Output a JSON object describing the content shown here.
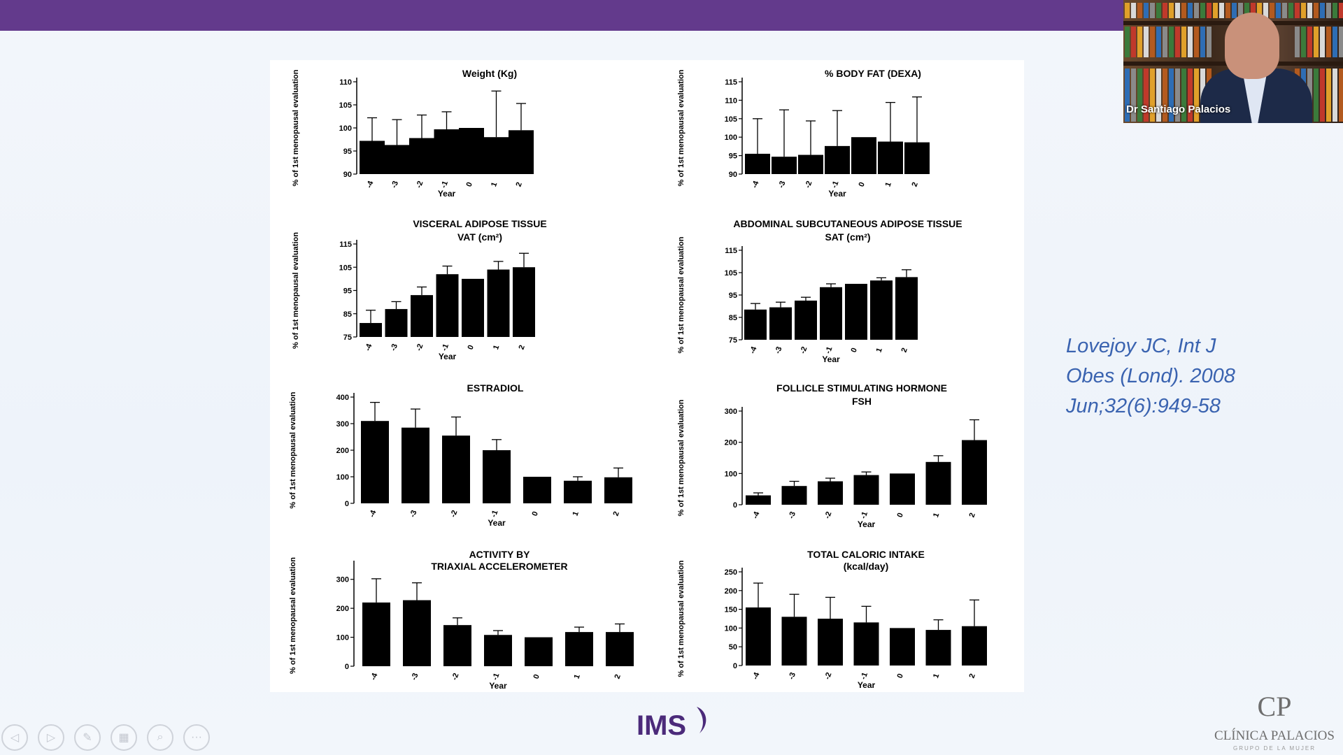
{
  "slide": {
    "citation_lines": [
      "Lovejoy JC, Int J",
      "Obes (Lond). 2008",
      "Jun;32(6):949-58"
    ],
    "logo_ims": "IMS",
    "logo_clinic": "CLÍNICA PALACIOS",
    "logo_clinic_sub": "GRUPO DE LA MUJER",
    "logo_clinic_mark": "CP"
  },
  "video": {
    "presenter_name": "Dr Santiago Palacios"
  },
  "colors": {
    "topbar": "#633a8c",
    "citation": "#3a63b0",
    "ims_logo": "#4b2a7a"
  },
  "toolbar": {
    "buttons": [
      {
        "name": "prev-slide",
        "icon": "◁"
      },
      {
        "name": "next-slide",
        "icon": "▷"
      },
      {
        "name": "pen",
        "icon": "✎"
      },
      {
        "name": "slides",
        "icon": "▦"
      },
      {
        "name": "zoom",
        "icon": "⌕"
      },
      {
        "name": "more",
        "icon": "···"
      }
    ]
  },
  "chart_data": [
    {
      "type": "bar",
      "title": "Weight (Kg)",
      "subtitle": "",
      "xlabel": "Year",
      "ylabel": "% of 1st menopausal evaluation",
      "categories": [
        "-4",
        "-3",
        "-2",
        "-1",
        "0",
        "1",
        "2"
      ],
      "ylim": [
        90,
        110
      ],
      "yticks": [
        90,
        95,
        100,
        105,
        110
      ],
      "values": [
        97.2,
        96.3,
        97.8,
        99.7,
        100,
        98,
        99.5
      ],
      "errors": [
        5,
        5.5,
        5,
        3.8,
        0,
        10,
        5.8
      ]
    },
    {
      "type": "bar",
      "title": "% BODY FAT (DEXA)",
      "subtitle": "",
      "xlabel": "Year",
      "ylabel": "% of 1st menopausal evaluation",
      "categories": [
        "-4",
        "-3",
        "-2",
        "-1",
        "0",
        "1",
        "2"
      ],
      "ylim": [
        90,
        115
      ],
      "yticks": [
        90,
        95,
        100,
        105,
        110,
        115
      ],
      "values": [
        95.5,
        94.7,
        95.2,
        97.6,
        100,
        98.8,
        98.6
      ],
      "errors": [
        9.5,
        12.7,
        9.2,
        9.6,
        0,
        10.6,
        12.3
      ]
    },
    {
      "type": "bar",
      "title": "VISCERAL ADIPOSE TISSUE",
      "subtitle": "VAT (cm²)",
      "xlabel": "Year",
      "ylabel": "% of 1st menopausal evaluation",
      "categories": [
        "-4",
        "-3",
        "-2",
        "-1",
        "0",
        "1",
        "2"
      ],
      "ylim": [
        75,
        115
      ],
      "yticks": [
        75,
        85,
        95,
        105,
        115
      ],
      "values": [
        81,
        87,
        93,
        102,
        100,
        104,
        105
      ],
      "errors": [
        5.5,
        3.2,
        3.5,
        3.5,
        0,
        3.5,
        6
      ]
    },
    {
      "type": "bar",
      "title": "ABDOMINAL SUBCUTANEOUS ADIPOSE TISSUE",
      "subtitle": "SAT (cm²)",
      "xlabel": "Year",
      "ylabel": "% of 1st menopausal evaluation",
      "categories": [
        "-4",
        "-3",
        "-2",
        "-1",
        "0",
        "1",
        "2"
      ],
      "ylim": [
        75,
        115
      ],
      "yticks": [
        75,
        85,
        95,
        105,
        115
      ],
      "values": [
        88.5,
        89.5,
        92.5,
        98.5,
        100,
        101.5,
        103
      ],
      "errors": [
        2.7,
        2.3,
        1.5,
        1.5,
        0,
        1.2,
        3.3
      ]
    },
    {
      "type": "bar",
      "title": "ESTRADIOL",
      "subtitle": "",
      "xlabel": "Year",
      "ylabel": "% of 1st menopausal evaluation",
      "categories": [
        "-4",
        "-3",
        "-2",
        "-1",
        "0",
        "1",
        "2"
      ],
      "ylim": [
        0,
        400
      ],
      "yticks": [
        0,
        100,
        200,
        300,
        400
      ],
      "values": [
        310,
        285,
        255,
        200,
        100,
        85,
        98
      ],
      "errors": [
        70,
        70,
        70,
        40,
        0,
        15,
        35
      ]
    },
    {
      "type": "bar",
      "title": "FOLLICLE STIMULATING HORMONE",
      "subtitle": "FSH",
      "xlabel": "Year",
      "ylabel": "% of 1st menopausal evaluation",
      "categories": [
        "-4",
        "-3",
        "-2",
        "-1",
        "0",
        "1",
        "2"
      ],
      "ylim": [
        0,
        300
      ],
      "yticks": [
        0,
        100,
        200,
        300
      ],
      "values": [
        30,
        60,
        75,
        95,
        100,
        137,
        207
      ],
      "errors": [
        8,
        15,
        10,
        10,
        0,
        20,
        65
      ]
    },
    {
      "type": "bar",
      "title": "ACTIVITY BY",
      "subtitle": "TRIAXIAL ACCELEROMETER",
      "xlabel": "Year",
      "ylabel": "% of 1st menopausal evaluation",
      "categories": [
        "-4",
        "-3",
        "-2",
        "-1",
        "0",
        "1",
        "2"
      ],
      "ylim": [
        0,
        350
      ],
      "yticks": [
        0,
        100,
        200,
        300
      ],
      "values": [
        220,
        228,
        142,
        108,
        100,
        118,
        118
      ],
      "errors": [
        82,
        60,
        25,
        15,
        0,
        17,
        28
      ]
    },
    {
      "type": "bar",
      "title": "TOTAL CALORIC INTAKE",
      "subtitle": "(kcal/day)",
      "xlabel": "Year",
      "ylabel": "% of 1st menopausal evaluation",
      "categories": [
        "-4",
        "-3",
        "-2",
        "-1",
        "0",
        "1",
        "2"
      ],
      "ylim": [
        0,
        250
      ],
      "yticks": [
        0,
        50,
        100,
        150,
        200,
        250
      ],
      "values": [
        155,
        130,
        125,
        115,
        100,
        95,
        105
      ],
      "errors": [
        65,
        60,
        57,
        43,
        0,
        27,
        70
      ]
    }
  ]
}
